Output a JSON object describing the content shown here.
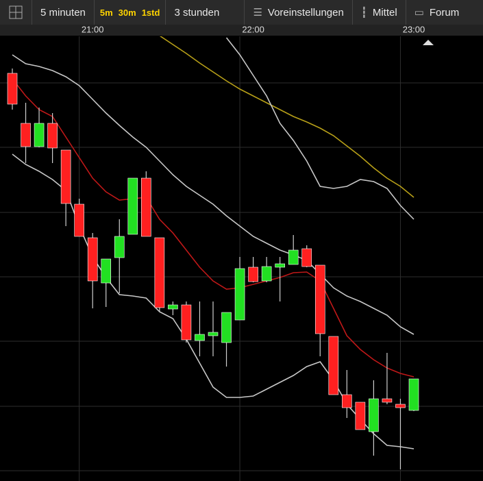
{
  "toolbar": {
    "interval": "5 minuten",
    "quick": [
      "5m",
      "30m",
      "1std"
    ],
    "range": "3 stunden",
    "presets": "Voreinstellungen",
    "style": "Mittel",
    "forum": "Forum"
  },
  "chart_data": {
    "type": "candlestick",
    "categories": [
      null,
      null,
      null,
      null,
      null,
      null,
      "21:00",
      null,
      null,
      null,
      null,
      null,
      null,
      null,
      null,
      null,
      null,
      null,
      "22:00",
      null,
      null,
      null,
      null,
      null,
      null,
      null,
      null,
      null,
      null,
      null,
      "23:00"
    ],
    "open": [
      593,
      520,
      486,
      520,
      481,
      402,
      353,
      287,
      324,
      358,
      440,
      353,
      249,
      255,
      203,
      210,
      200,
      233,
      310,
      290,
      310,
      314,
      337,
      313,
      209,
      124,
      113,
      70,
      118,
      110,
      101
    ],
    "close": [
      548,
      486,
      520,
      484,
      403,
      355,
      290,
      322,
      355,
      440,
      355,
      251,
      255,
      204,
      212,
      215,
      244,
      308,
      289,
      311,
      315,
      335,
      311,
      213,
      124,
      105,
      73,
      118,
      113,
      105,
      147
    ],
    "high": [
      600,
      550,
      543,
      535,
      481,
      410,
      360,
      322,
      380,
      440,
      450,
      353,
      260,
      260,
      260,
      260,
      244,
      325,
      325,
      325,
      325,
      357,
      342,
      313,
      209,
      160,
      113,
      145,
      185,
      118,
      147
    ],
    "low": [
      540,
      462,
      485,
      462,
      370,
      355,
      250,
      252,
      272,
      358,
      355,
      245,
      240,
      200,
      180,
      180,
      165,
      233,
      288,
      288,
      260,
      314,
      310,
      180,
      124,
      90,
      73,
      35,
      110,
      15,
      100
    ],
    "up_color": "#22e022",
    "down_color": "#ff2020",
    "wick_color": "#cfcfcf",
    "lines": [
      {
        "color": "#c01818",
        "values": [
          585,
          560,
          540,
          530,
          500,
          470,
          440,
          420,
          408,
          410,
          412,
          380,
          360,
          335,
          310,
          290,
          278,
          280,
          285,
          290,
          295,
          302,
          303,
          290,
          250,
          210,
          190,
          175,
          163,
          155,
          150
        ]
      },
      {
        "color": "#c8c8c8",
        "values": [
          620,
          607,
          603,
          597,
          588,
          575,
          555,
          535,
          517,
          500,
          485,
          465,
          445,
          428,
          415,
          402,
          385,
          370,
          355,
          345,
          335,
          328,
          320,
          300,
          280,
          268,
          260,
          250,
          240,
          223,
          212
        ]
      },
      {
        "color": "#c8c8c8",
        "values": [
          475,
          460,
          450,
          438,
          422,
          370,
          325,
          295,
          270,
          268,
          265,
          245,
          235,
          205,
          170,
          135,
          120,
          120,
          122,
          132,
          142,
          152,
          165,
          172,
          145,
          110,
          88,
          67,
          50,
          48,
          45
        ]
      },
      {
        "color": "#b8a018",
        "values": [
          null,
          null,
          null,
          null,
          null,
          null,
          null,
          null,
          null,
          null,
          null,
          648,
          635,
          622,
          608,
          595,
          582,
          570,
          560,
          550,
          540,
          530,
          522,
          513,
          502,
          487,
          472,
          455,
          440,
          428,
          412
        ]
      },
      {
        "color": "#c8c8c8",
        "values": [
          null,
          null,
          null,
          null,
          null,
          null,
          null,
          null,
          null,
          null,
          null,
          null,
          null,
          null,
          null,
          null,
          645,
          620,
          590,
          560,
          520,
          495,
          465,
          428,
          425,
          428,
          438,
          435,
          425,
          400,
          380
        ]
      }
    ],
    "ylim": [
      0,
      700
    ],
    "yticks": [
      13,
      107,
      202,
      296,
      390,
      485,
      579
    ],
    "grid": true
  }
}
